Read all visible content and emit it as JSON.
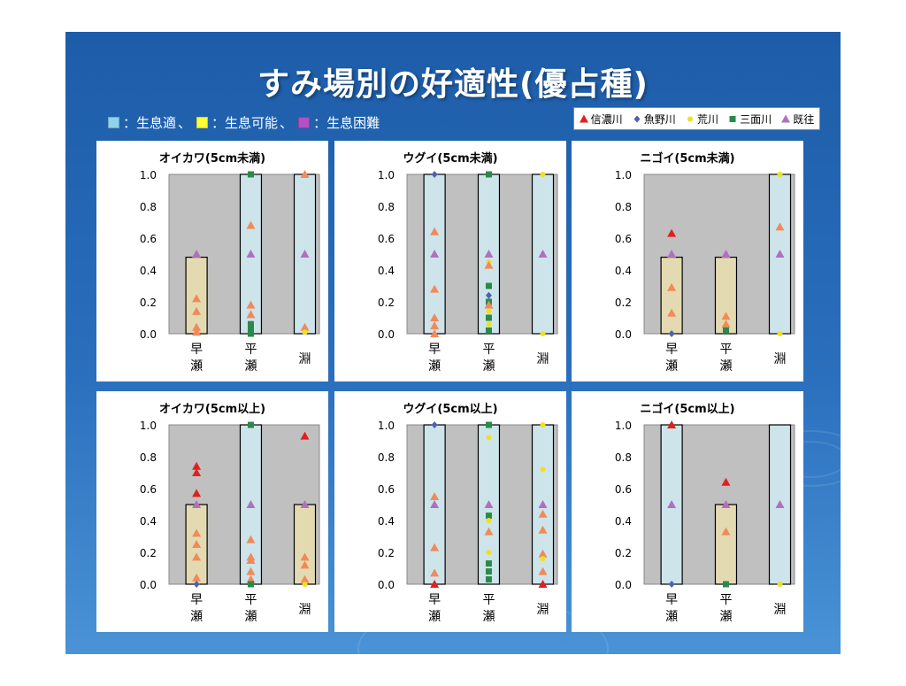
{
  "slide": {
    "title": "すみ場別の好適性(優占種)",
    "suitability_legend": [
      {
        "label": "：生息適",
        "color": "#8fd3e6",
        "separator": "、"
      },
      {
        "label": "：生息可能",
        "color": "#ffff33",
        "separator": "、"
      },
      {
        "label": "：生息困難",
        "color": "#b44fc4",
        "separator": ""
      }
    ],
    "series_legend": [
      {
        "name": "信濃川",
        "marker": "triangle",
        "color": "#e02020"
      },
      {
        "name": "魚野川",
        "marker": "diamond",
        "color": "#5060b0"
      },
      {
        "name": "荒川",
        "marker": "circle",
        "color": "#f0e020"
      },
      {
        "name": "三面川",
        "marker": "square",
        "color": "#2a8a4a"
      },
      {
        "name": "既往",
        "marker": "triangle",
        "color": "#b070c0"
      }
    ]
  },
  "chart_data": [
    {
      "type": "scatter",
      "title": "オイカワ(5cm未満)",
      "categories": [
        "早\n瀬",
        "平\n瀬",
        "淵"
      ],
      "ylim": [
        0,
        1
      ],
      "yticks": [
        "0.0",
        "0.2",
        "0.4",
        "0.6",
        "0.8",
        "1.0"
      ],
      "habitat_boxes": [
        {
          "category": 0,
          "value": 0.48,
          "suitability": "possible"
        },
        {
          "category": 1,
          "value": 1.0,
          "suitability": "suitable"
        },
        {
          "category": 2,
          "value": 1.0,
          "suitability": "suitable"
        }
      ],
      "points": [
        {
          "c": 0,
          "y": 0.5,
          "s": "既往"
        },
        {
          "c": 0,
          "y": 0.22,
          "s": "orange"
        },
        {
          "c": 0,
          "y": 0.14,
          "s": "orange"
        },
        {
          "c": 0,
          "y": 0.04,
          "s": "orange"
        },
        {
          "c": 0,
          "y": 0.01,
          "s": "orange"
        },
        {
          "c": 1,
          "y": 1.0,
          "s": "三面川"
        },
        {
          "c": 1,
          "y": 0.68,
          "s": "orange"
        },
        {
          "c": 1,
          "y": 0.5,
          "s": "既往"
        },
        {
          "c": 1,
          "y": 0.18,
          "s": "orange"
        },
        {
          "c": 1,
          "y": 0.12,
          "s": "orange"
        },
        {
          "c": 1,
          "y": 0.06,
          "s": "三面川"
        },
        {
          "c": 1,
          "y": 0.03,
          "s": "三面川"
        },
        {
          "c": 1,
          "y": 0.0,
          "s": "三面川"
        },
        {
          "c": 2,
          "y": 1.0,
          "s": "orange"
        },
        {
          "c": 2,
          "y": 0.5,
          "s": "既往"
        },
        {
          "c": 2,
          "y": 0.04,
          "s": "orange"
        },
        {
          "c": 2,
          "y": 0.01,
          "s": "荒川"
        }
      ]
    },
    {
      "type": "scatter",
      "title": "ウグイ(5cm未満)",
      "categories": [
        "早\n瀬",
        "平\n瀬",
        "淵"
      ],
      "ylim": [
        0,
        1
      ],
      "yticks": [
        "0.0",
        "0.2",
        "0.4",
        "0.6",
        "0.8",
        "1.0"
      ],
      "habitat_boxes": [
        {
          "category": 0,
          "value": 1.0,
          "suitability": "suitable"
        },
        {
          "category": 1,
          "value": 1.0,
          "suitability": "suitable"
        },
        {
          "category": 2,
          "value": 1.0,
          "suitability": "suitable"
        }
      ],
      "points": [
        {
          "c": 0,
          "y": 1.0,
          "s": "魚野川"
        },
        {
          "c": 0,
          "y": 0.64,
          "s": "orange"
        },
        {
          "c": 0,
          "y": 0.5,
          "s": "既往"
        },
        {
          "c": 0,
          "y": 0.28,
          "s": "orange"
        },
        {
          "c": 0,
          "y": 0.1,
          "s": "orange"
        },
        {
          "c": 0,
          "y": 0.05,
          "s": "orange"
        },
        {
          "c": 0,
          "y": 0.0,
          "s": "orange"
        },
        {
          "c": 1,
          "y": 1.0,
          "s": "三面川"
        },
        {
          "c": 1,
          "y": 0.5,
          "s": "既往"
        },
        {
          "c": 1,
          "y": 0.45,
          "s": "荒川"
        },
        {
          "c": 1,
          "y": 0.43,
          "s": "orange"
        },
        {
          "c": 1,
          "y": 0.3,
          "s": "三面川"
        },
        {
          "c": 1,
          "y": 0.24,
          "s": "魚野川"
        },
        {
          "c": 1,
          "y": 0.2,
          "s": "三面川"
        },
        {
          "c": 1,
          "y": 0.18,
          "s": "orange"
        },
        {
          "c": 1,
          "y": 0.14,
          "s": "荒川"
        },
        {
          "c": 1,
          "y": 0.1,
          "s": "三面川"
        },
        {
          "c": 1,
          "y": 0.06,
          "s": "荒川"
        },
        {
          "c": 1,
          "y": 0.02,
          "s": "三面川"
        },
        {
          "c": 2,
          "y": 1.0,
          "s": "荒川"
        },
        {
          "c": 2,
          "y": 0.5,
          "s": "既往"
        },
        {
          "c": 2,
          "y": 0.0,
          "s": "荒川"
        }
      ]
    },
    {
      "type": "scatter",
      "title": "ニゴイ(5cm未満)",
      "categories": [
        "早\n瀬",
        "平\n瀬",
        "淵"
      ],
      "ylim": [
        0,
        1
      ],
      "yticks": [
        "0.0",
        "0.2",
        "0.4",
        "0.6",
        "0.8",
        "1.0"
      ],
      "habitat_boxes": [
        {
          "category": 0,
          "value": 0.48,
          "suitability": "possible"
        },
        {
          "category": 1,
          "value": 0.48,
          "suitability": "possible"
        },
        {
          "category": 2,
          "value": 1.0,
          "suitability": "suitable"
        }
      ],
      "points": [
        {
          "c": 0,
          "y": 0.63,
          "s": "信濃川"
        },
        {
          "c": 0,
          "y": 0.5,
          "s": "既往"
        },
        {
          "c": 0,
          "y": 0.29,
          "s": "orange"
        },
        {
          "c": 0,
          "y": 0.13,
          "s": "orange"
        },
        {
          "c": 0,
          "y": 0.0,
          "s": "魚野川"
        },
        {
          "c": 1,
          "y": 0.5,
          "s": "既往"
        },
        {
          "c": 1,
          "y": 0.11,
          "s": "orange"
        },
        {
          "c": 1,
          "y": 0.06,
          "s": "orange"
        },
        {
          "c": 1,
          "y": 0.02,
          "s": "三面川"
        },
        {
          "c": 2,
          "y": 1.0,
          "s": "荒川"
        },
        {
          "c": 2,
          "y": 0.67,
          "s": "orange"
        },
        {
          "c": 2,
          "y": 0.5,
          "s": "既往"
        },
        {
          "c": 2,
          "y": 0.0,
          "s": "荒川"
        }
      ]
    },
    {
      "type": "scatter",
      "title": "オイカワ(5cm以上)",
      "categories": [
        "早\n瀬",
        "平\n瀬",
        "淵"
      ],
      "ylim": [
        0,
        1
      ],
      "yticks": [
        "0.0",
        "0.2",
        "0.4",
        "0.6",
        "0.8",
        "1.0"
      ],
      "habitat_boxes": [
        {
          "category": 0,
          "value": 0.5,
          "suitability": "possible"
        },
        {
          "category": 1,
          "value": 1.0,
          "suitability": "suitable"
        },
        {
          "category": 2,
          "value": 0.5,
          "suitability": "possible"
        }
      ],
      "points": [
        {
          "c": 0,
          "y": 0.74,
          "s": "信濃川"
        },
        {
          "c": 0,
          "y": 0.7,
          "s": "信濃川"
        },
        {
          "c": 0,
          "y": 0.57,
          "s": "信濃川"
        },
        {
          "c": 0,
          "y": 0.5,
          "s": "既往"
        },
        {
          "c": 0,
          "y": 0.32,
          "s": "orange"
        },
        {
          "c": 0,
          "y": 0.25,
          "s": "orange"
        },
        {
          "c": 0,
          "y": 0.17,
          "s": "orange"
        },
        {
          "c": 0,
          "y": 0.04,
          "s": "orange"
        },
        {
          "c": 0,
          "y": 0.0,
          "s": "魚野川"
        },
        {
          "c": 1,
          "y": 1.0,
          "s": "三面川"
        },
        {
          "c": 1,
          "y": 0.5,
          "s": "既往"
        },
        {
          "c": 1,
          "y": 0.28,
          "s": "orange"
        },
        {
          "c": 1,
          "y": 0.17,
          "s": "orange"
        },
        {
          "c": 1,
          "y": 0.15,
          "s": "orange"
        },
        {
          "c": 1,
          "y": 0.08,
          "s": "orange"
        },
        {
          "c": 1,
          "y": 0.03,
          "s": "orange"
        },
        {
          "c": 1,
          "y": 0.0,
          "s": "三面川"
        },
        {
          "c": 2,
          "y": 0.93,
          "s": "信濃川"
        },
        {
          "c": 2,
          "y": 0.5,
          "s": "既往"
        },
        {
          "c": 2,
          "y": 0.17,
          "s": "orange"
        },
        {
          "c": 2,
          "y": 0.12,
          "s": "orange"
        },
        {
          "c": 2,
          "y": 0.03,
          "s": "orange"
        },
        {
          "c": 2,
          "y": 0.0,
          "s": "荒川"
        }
      ]
    },
    {
      "type": "scatter",
      "title": "ウグイ(5cm以上)",
      "categories": [
        "早\n瀬",
        "平\n瀬",
        "淵"
      ],
      "ylim": [
        0,
        1
      ],
      "yticks": [
        "0.0",
        "0.2",
        "0.4",
        "0.6",
        "0.8",
        "1.0"
      ],
      "habitat_boxes": [
        {
          "category": 0,
          "value": 1.0,
          "suitability": "suitable"
        },
        {
          "category": 1,
          "value": 1.0,
          "suitability": "suitable"
        },
        {
          "category": 2,
          "value": 1.0,
          "suitability": "suitable"
        }
      ],
      "points": [
        {
          "c": 0,
          "y": 1.0,
          "s": "魚野川"
        },
        {
          "c": 0,
          "y": 0.55,
          "s": "orange"
        },
        {
          "c": 0,
          "y": 0.5,
          "s": "既往"
        },
        {
          "c": 0,
          "y": 0.23,
          "s": "orange"
        },
        {
          "c": 0,
          "y": 0.07,
          "s": "orange"
        },
        {
          "c": 0,
          "y": 0.0,
          "s": "信濃川"
        },
        {
          "c": 1,
          "y": 1.0,
          "s": "三面川"
        },
        {
          "c": 1,
          "y": 0.92,
          "s": "荒川"
        },
        {
          "c": 1,
          "y": 0.5,
          "s": "既往"
        },
        {
          "c": 1,
          "y": 0.43,
          "s": "三面川"
        },
        {
          "c": 1,
          "y": 0.4,
          "s": "荒川"
        },
        {
          "c": 1,
          "y": 0.33,
          "s": "orange"
        },
        {
          "c": 1,
          "y": 0.2,
          "s": "荒川"
        },
        {
          "c": 1,
          "y": 0.13,
          "s": "三面川"
        },
        {
          "c": 1,
          "y": 0.08,
          "s": "三面川"
        },
        {
          "c": 1,
          "y": 0.03,
          "s": "三面川"
        },
        {
          "c": 2,
          "y": 1.0,
          "s": "荒川"
        },
        {
          "c": 2,
          "y": 0.72,
          "s": "荒川"
        },
        {
          "c": 2,
          "y": 0.5,
          "s": "既往"
        },
        {
          "c": 2,
          "y": 0.44,
          "s": "orange"
        },
        {
          "c": 2,
          "y": 0.34,
          "s": "orange"
        },
        {
          "c": 2,
          "y": 0.19,
          "s": "orange"
        },
        {
          "c": 2,
          "y": 0.16,
          "s": "荒川"
        },
        {
          "c": 2,
          "y": 0.08,
          "s": "orange"
        },
        {
          "c": 2,
          "y": 0.0,
          "s": "信濃川"
        }
      ]
    },
    {
      "type": "scatter",
      "title": "ニゴイ(5cm以上)",
      "categories": [
        "早\n瀬",
        "平\n瀬",
        "淵"
      ],
      "ylim": [
        0,
        1
      ],
      "yticks": [
        "0.0",
        "0.2",
        "0.4",
        "0.6",
        "0.8",
        "1.0"
      ],
      "habitat_boxes": [
        {
          "category": 0,
          "value": 1.0,
          "suitability": "suitable"
        },
        {
          "category": 1,
          "value": 0.5,
          "suitability": "possible"
        },
        {
          "category": 2,
          "value": 1.0,
          "suitability": "suitable"
        }
      ],
      "points": [
        {
          "c": 0,
          "y": 1.0,
          "s": "信濃川"
        },
        {
          "c": 0,
          "y": 0.5,
          "s": "既往"
        },
        {
          "c": 0,
          "y": 0.0,
          "s": "魚野川"
        },
        {
          "c": 1,
          "y": 0.64,
          "s": "信濃川"
        },
        {
          "c": 1,
          "y": 0.5,
          "s": "既往"
        },
        {
          "c": 1,
          "y": 0.33,
          "s": "orange"
        },
        {
          "c": 1,
          "y": 0.0,
          "s": "三面川"
        },
        {
          "c": 2,
          "y": 0.5,
          "s": "既往"
        },
        {
          "c": 2,
          "y": 0.0,
          "s": "荒川"
        }
      ]
    }
  ]
}
